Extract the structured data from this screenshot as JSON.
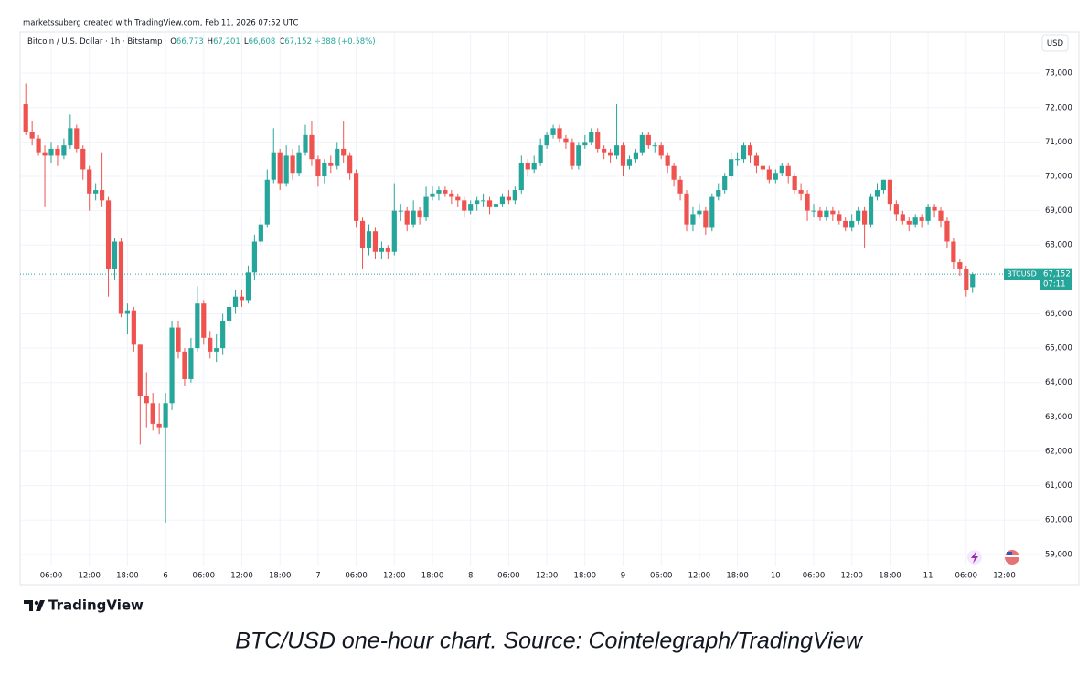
{
  "chart_data": {
    "type": "candlestick",
    "header": "marketssuberg created with TradingView.com, Feb 11, 2026 07:52 UTC",
    "legend": {
      "symbol": "Bitcoin / U.S. Dollar · 1h · Bitstamp",
      "ohlc": [
        {
          "key": "O",
          "value": "66,773"
        },
        {
          "key": "H",
          "value": "67,201"
        },
        {
          "key": "L",
          "value": "66,608"
        },
        {
          "key": "C",
          "value": "67,152"
        }
      ],
      "change": "+388 (+0.58%)"
    },
    "currency": "USD",
    "last_price": {
      "symbol": "BTCUSD",
      "value": 67152,
      "label": "67,152",
      "countdown": "07:11"
    },
    "caption": "BTC/USD one-hour chart. Source: Cointelegraph/TradingView",
    "brand": "TradingView",
    "up_color": "#26a69a",
    "down_color": "#ef5350",
    "grid": true,
    "ylim": [
      58650,
      74200
    ],
    "yticks": [
      {
        "value": 59000,
        "label": "59,000"
      },
      {
        "value": 60000,
        "label": "60,000"
      },
      {
        "value": 61000,
        "label": "61,000"
      },
      {
        "value": 62000,
        "label": "62,000"
      },
      {
        "value": 63000,
        "label": "63,000"
      },
      {
        "value": 64000,
        "label": "64,000"
      },
      {
        "value": 65000,
        "label": "65,000"
      },
      {
        "value": 66000,
        "label": "66,000"
      },
      {
        "value": 67000,
        "label": "67,000"
      },
      {
        "value": 68000,
        "label": "68,000"
      },
      {
        "value": 69000,
        "label": "69,000"
      },
      {
        "value": 70000,
        "label": "70,000"
      },
      {
        "value": 71000,
        "label": "71,000"
      },
      {
        "value": 72000,
        "label": "72,000"
      },
      {
        "value": 73000,
        "label": "73,000"
      }
    ],
    "categories": [
      null,
      null,
      null,
      null,
      "06:00",
      null,
      null,
      null,
      null,
      null,
      "12:00",
      null,
      null,
      null,
      null,
      null,
      "18:00",
      null,
      null,
      null,
      null,
      null,
      "6",
      null,
      null,
      null,
      null,
      null,
      "06:00",
      null,
      null,
      null,
      null,
      null,
      "12:00",
      null,
      null,
      null,
      null,
      null,
      "18:00",
      null,
      null,
      null,
      null,
      null,
      "7",
      null,
      null,
      null,
      null,
      null,
      "06:00",
      null,
      null,
      null,
      null,
      null,
      "12:00",
      null,
      null,
      null,
      null,
      null,
      "18:00",
      null,
      null,
      null,
      null,
      null,
      "8",
      null,
      null,
      null,
      null,
      null,
      "06:00",
      null,
      null,
      null,
      null,
      null,
      "12:00",
      null,
      null,
      null,
      null,
      null,
      "18:00",
      null,
      null,
      null,
      null,
      null,
      "9",
      null,
      null,
      null,
      null,
      null,
      "06:00",
      null,
      null,
      null,
      null,
      null,
      "12:00",
      null,
      null,
      null,
      null,
      null,
      "18:00",
      null,
      null,
      null,
      null,
      null,
      "10",
      null,
      null,
      null,
      null,
      null,
      "06:00",
      null,
      null,
      null,
      null,
      null,
      "12:00",
      null,
      null,
      null,
      null,
      null,
      "18:00",
      null,
      null,
      null,
      null,
      null,
      "11",
      null,
      null,
      null,
      null,
      null,
      "06:00",
      null,
      null,
      null,
      null,
      null,
      "12:00"
    ],
    "open": [
      72100,
      71300,
      71100,
      70700,
      70600,
      70800,
      70600,
      70900,
      71400,
      70800,
      70200,
      69500,
      69600,
      69300,
      67300,
      68100,
      66000,
      66100,
      65100,
      63600,
      63400,
      62800,
      62700,
      63400,
      65600,
      64900,
      64100,
      65000,
      66300,
      65300,
      64900,
      65000,
      65800,
      66200,
      66500,
      66400,
      67200,
      68100,
      68600,
      69900,
      70700,
      69800,
      70600,
      70100,
      70700,
      71200,
      70500,
      70000,
      70400,
      70300,
      70800,
      70600,
      70100,
      68700,
      67900,
      68400,
      67800,
      67900,
      67800,
      69000,
      69000,
      68600,
      69000,
      68800,
      69400,
      69500,
      69600,
      69500,
      69400,
      69300,
      69000,
      69200,
      69300,
      69300,
      69100,
      69200,
      69400,
      69300,
      69600,
      70400,
      70200,
      70400,
      70900,
      71200,
      71400,
      71100,
      71000,
      70300,
      70900,
      71000,
      71300,
      70800,
      70700,
      70600,
      70900,
      70300,
      70500,
      70700,
      71200,
      70900,
      70900,
      70600,
      70300,
      69900,
      69500,
      68600,
      68900,
      69000,
      68500,
      69400,
      69600,
      70000,
      70500,
      70500,
      70900,
      70600,
      70300,
      70200,
      69900,
      70100,
      70300,
      70000,
      69600,
      69500,
      69000,
      69000,
      68800,
      69000,
      68900,
      68700,
      68500,
      68700,
      69000,
      68600,
      69400,
      69600,
      69900,
      69200,
      68900,
      68700,
      68600,
      68800,
      68700,
      69100,
      69000,
      68700,
      68100,
      67500,
      67300,
      66773,
      null,
      null,
      null,
      null,
      null
    ],
    "high": [
      72700,
      71600,
      71200,
      70900,
      71000,
      70900,
      71100,
      71800,
      71500,
      70900,
      70300,
      69800,
      70700,
      69400,
      68200,
      68200,
      66300,
      66200,
      65100,
      64300,
      63700,
      63400,
      63700,
      65800,
      65800,
      65000,
      65300,
      66800,
      66400,
      65500,
      65400,
      66000,
      66400,
      66700,
      66700,
      67400,
      68300,
      68800,
      70200,
      71400,
      70800,
      70900,
      70800,
      70900,
      71500,
      71600,
      70600,
      70500,
      70600,
      71000,
      71600,
      70700,
      70200,
      68800,
      68600,
      68500,
      68100,
      68000,
      69800,
      69200,
      69100,
      69300,
      69100,
      69700,
      69700,
      69700,
      69700,
      69600,
      69500,
      69400,
      69300,
      69400,
      69500,
      69400,
      69400,
      69500,
      69600,
      69700,
      70600,
      70500,
      70600,
      71100,
      71300,
      71500,
      71500,
      71200,
      71100,
      71000,
      71200,
      71400,
      71400,
      70900,
      70800,
      72100,
      71000,
      70600,
      70800,
      71300,
      71300,
      71000,
      71000,
      70700,
      70400,
      70000,
      69600,
      69100,
      69200,
      69100,
      69500,
      69800,
      70100,
      70700,
      70700,
      71000,
      71000,
      70700,
      70400,
      70300,
      70200,
      70400,
      70400,
      70100,
      69800,
      69600,
      69200,
      69100,
      69100,
      69100,
      69000,
      68800,
      68900,
      69100,
      69100,
      69500,
      69800,
      69900,
      69900,
      69300,
      69000,
      68800,
      68900,
      68900,
      69200,
      69200,
      69100,
      68800,
      68200,
      67600,
      67400,
      67201,
      null,
      null,
      null,
      null,
      null
    ],
    "low": [
      71200,
      70900,
      70600,
      69100,
      70400,
      70300,
      70500,
      70800,
      70700,
      69900,
      69000,
      69300,
      69100,
      66500,
      67000,
      65900,
      65400,
      64900,
      62200,
      62700,
      62600,
      62500,
      59900,
      63200,
      64700,
      63900,
      64000,
      64900,
      65100,
      64700,
      64600,
      64800,
      65600,
      66000,
      66200,
      66300,
      67000,
      68000,
      68500,
      69800,
      69600,
      69700,
      69900,
      70000,
      70600,
      70300,
      69700,
      69800,
      70100,
      70200,
      70400,
      69900,
      68500,
      67300,
      67700,
      67600,
      67600,
      67600,
      67700,
      68700,
      68400,
      68500,
      68600,
      68700,
      69300,
      69300,
      69400,
      69200,
      69100,
      68800,
      68900,
      69000,
      69100,
      68900,
      69000,
      69100,
      69200,
      69200,
      69500,
      70000,
      70100,
      70300,
      70800,
      71100,
      71000,
      70800,
      70200,
      70200,
      70800,
      70900,
      70700,
      70500,
      70400,
      70500,
      70000,
      70200,
      70400,
      70600,
      70800,
      70700,
      70500,
      70100,
      69700,
      69300,
      68400,
      68400,
      68800,
      68300,
      68400,
      69300,
      69500,
      69900,
      70300,
      70400,
      70400,
      70100,
      70000,
      69800,
      69800,
      70000,
      69800,
      69500,
      69300,
      68700,
      68800,
      68700,
      68700,
      68700,
      68600,
      68400,
      68400,
      68600,
      67900,
      68500,
      69300,
      69500,
      69000,
      68700,
      68600,
      68400,
      68500,
      68500,
      68600,
      68800,
      68500,
      67900,
      67300,
      67100,
      66500,
      66608,
      null,
      null,
      null,
      null,
      null
    ],
    "close": [
      71300,
      71100,
      70700,
      70600,
      70800,
      70600,
      70900,
      71400,
      70800,
      70200,
      69500,
      69600,
      69300,
      67300,
      68100,
      66000,
      66100,
      65100,
      63600,
      63400,
      62800,
      62700,
      63400,
      65600,
      64900,
      64100,
      65000,
      66300,
      65300,
      64900,
      65000,
      65800,
      66200,
      66500,
      66400,
      67200,
      68100,
      68600,
      69900,
      70700,
      69800,
      70600,
      70100,
      70700,
      71200,
      70500,
      70000,
      70400,
      70300,
      70800,
      70600,
      70100,
      68700,
      67900,
      68400,
      67800,
      67900,
      67800,
      69000,
      69000,
      68600,
      69000,
      68800,
      69400,
      69500,
      69600,
      69500,
      69400,
      69300,
      69000,
      69200,
      69300,
      69300,
      69100,
      69200,
      69400,
      69300,
      69600,
      70400,
      70200,
      70400,
      70900,
      71200,
      71400,
      71100,
      71000,
      70300,
      70900,
      71000,
      71300,
      70800,
      70700,
      70600,
      70900,
      70300,
      70500,
      70700,
      71200,
      70900,
      70900,
      70600,
      70300,
      69900,
      69500,
      68600,
      68900,
      69000,
      68500,
      69400,
      69600,
      70000,
      70500,
      70500,
      70900,
      70600,
      70300,
      70200,
      69900,
      70100,
      70300,
      70000,
      69600,
      69500,
      69000,
      69000,
      68800,
      69000,
      68900,
      68700,
      68500,
      68700,
      69000,
      68600,
      69400,
      69600,
      69900,
      69200,
      68900,
      68700,
      68600,
      68800,
      68700,
      69100,
      69000,
      68700,
      68100,
      67500,
      67300,
      66700,
      67152,
      null,
      null,
      null,
      null,
      null
    ]
  }
}
